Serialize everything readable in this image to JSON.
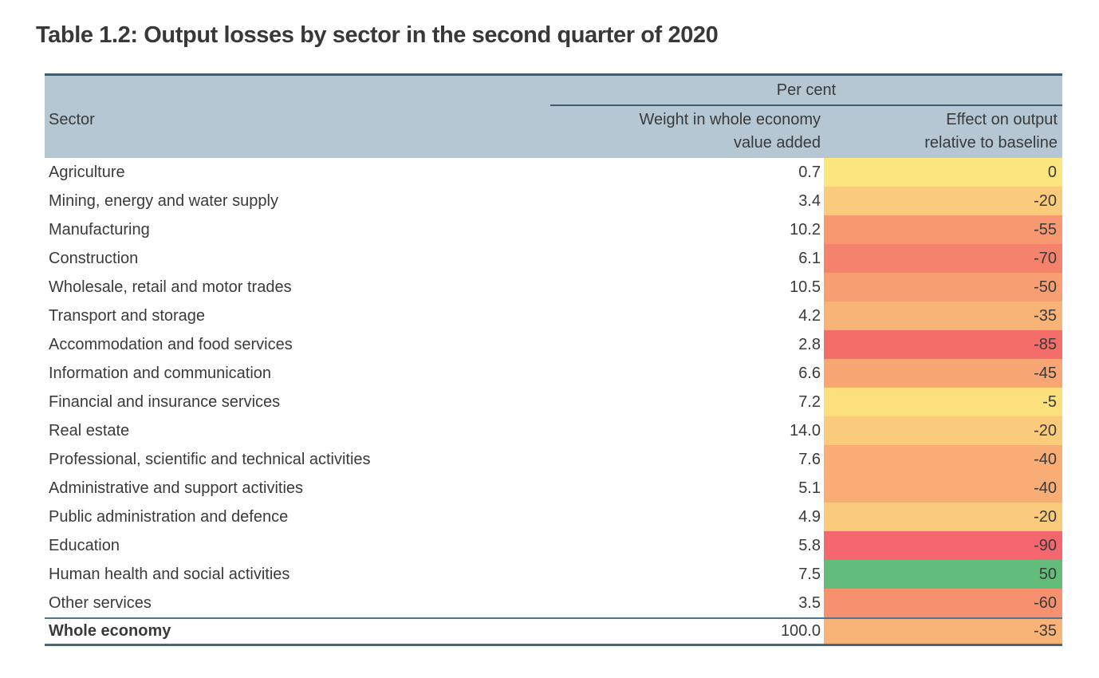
{
  "title": "Table 1.2: Output losses by sector in the second quarter of 2020",
  "table": {
    "unit_header": "Per cent",
    "sector_header": "Sector",
    "weight_header": "Weight in whole economy\nvalue added",
    "effect_header": "Effect on output\nrelative to baseline",
    "colors": {
      "header_bg": "#B4C7D3",
      "border_top": "#3E5D6F",
      "border_inner": "#53748C",
      "border_bottom": "#47677E",
      "scale_min_red": "#F5676E",
      "scale_mid_yellow": "#FBE77E",
      "scale_max_green": "#62BD7B"
    },
    "rows": [
      {
        "sector": "Agriculture",
        "weight": "0.7",
        "effect": "0",
        "effect_color": "#FBE77E"
      },
      {
        "sector": "Mining, energy and water supply",
        "weight": "3.4",
        "effect": "-20",
        "effect_color": "#F9CB7B"
      },
      {
        "sector": "Manufacturing",
        "weight": "10.2",
        "effect": "-55",
        "effect_color": "#F79871"
      },
      {
        "sector": "Construction",
        "weight": "6.1",
        "effect": "-70",
        "effect_color": "#F5826D"
      },
      {
        "sector": "Wholesale, retail and motor trades",
        "weight": "10.5",
        "effect": "-50",
        "effect_color": "#F79F72"
      },
      {
        "sector": "Transport and storage",
        "weight": "4.2",
        "effect": "-35",
        "effect_color": "#F8B476"
      },
      {
        "sector": "Accommodation and food services",
        "weight": "2.8",
        "effect": "-85",
        "effect_color": "#F46D69"
      },
      {
        "sector": "Information and communication",
        "weight": "6.6",
        "effect": "-45",
        "effect_color": "#F7A674"
      },
      {
        "sector": "Financial and insurance services",
        "weight": "7.2",
        "effect": "-5",
        "effect_color": "#FBE07D"
      },
      {
        "sector": "Real estate",
        "weight": "14.0",
        "effect": "-20",
        "effect_color": "#F9CB7B"
      },
      {
        "sector": "Professional, scientific and technical activities",
        "weight": "7.6",
        "effect": "-40",
        "effect_color": "#F8AD75"
      },
      {
        "sector": "Administrative and support activities",
        "weight": "5.1",
        "effect": "-40",
        "effect_color": "#F8AD75"
      },
      {
        "sector": "Public administration and defence",
        "weight": "4.9",
        "effect": "-20",
        "effect_color": "#F9CB7B"
      },
      {
        "sector": "Education",
        "weight": "5.8",
        "effect": "-90",
        "effect_color": "#F5676E"
      },
      {
        "sector": "Human health and social activities",
        "weight": "7.5",
        "effect": "50",
        "effect_color": "#62BD7B"
      },
      {
        "sector": "Other services",
        "weight": "3.5",
        "effect": "-60",
        "effect_color": "#F6906F"
      }
    ],
    "total_row": {
      "sector": "Whole economy",
      "weight": "100.0",
      "effect": "-35",
      "effect_color": "#F8B476"
    }
  }
}
